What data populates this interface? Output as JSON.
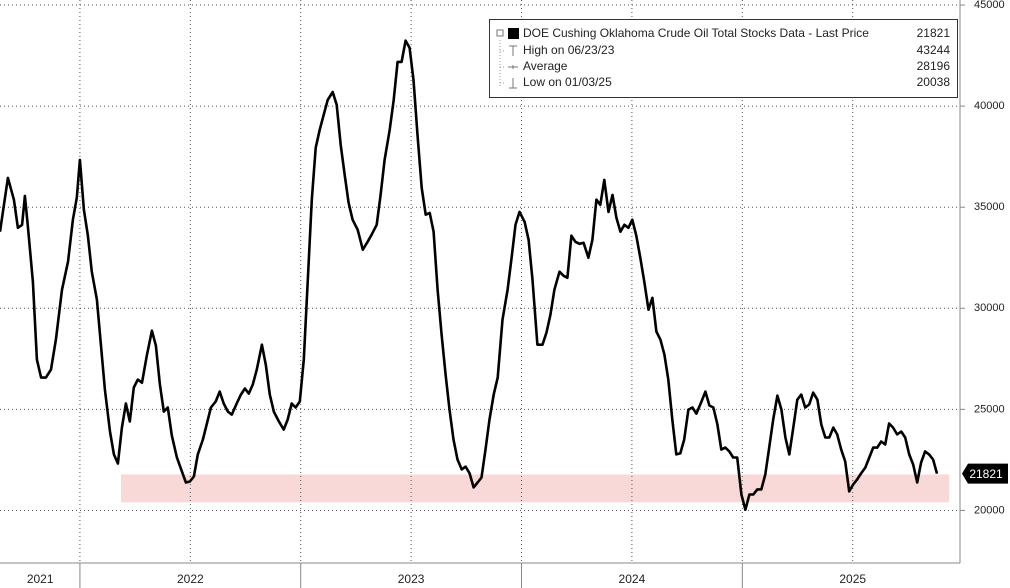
{
  "chart_data": {
    "type": "line",
    "series": [
      {
        "name": "DOE Cushing Oklahoma Crude Oil Total Stocks Data - Last Price",
        "color": "#000000",
        "x": [
          2021.638,
          2021.674,
          2021.701,
          2021.719,
          2021.738,
          2021.751,
          2021.765,
          2021.787,
          2021.805,
          2021.824,
          2021.846,
          2021.869,
          2021.891,
          2021.919,
          2021.946,
          2021.968,
          2021.986,
          2022.0,
          2022.018,
          2022.036,
          2022.054,
          2022.077,
          2022.095,
          2022.113,
          2022.136,
          2022.154,
          2022.172,
          2022.19,
          2022.208,
          2022.226,
          2022.244,
          2022.262,
          2022.281,
          2022.303,
          2022.326,
          2022.344,
          2022.362,
          2022.38,
          2022.398,
          2022.416,
          2022.439,
          2022.462,
          2022.48,
          2022.498,
          2022.516,
          2022.534,
          2022.557,
          2022.575,
          2022.593,
          2022.615,
          2022.633,
          2022.651,
          2022.67,
          2022.688,
          2022.71,
          2022.729,
          2022.747,
          2022.765,
          2022.783,
          2022.801,
          2022.824,
          2022.842,
          2022.86,
          2022.878,
          2022.901,
          2022.923,
          2022.941,
          2022.959,
          2022.977,
          2022.996,
          2023.014,
          2023.032,
          2023.05,
          2023.068,
          2023.086,
          2023.104,
          2023.122,
          2023.145,
          2023.163,
          2023.181,
          2023.199,
          2023.217,
          2023.235,
          2023.258,
          2023.281,
          2023.303,
          2023.321,
          2023.344,
          2023.362,
          2023.38,
          2023.403,
          2023.421,
          2023.439,
          2023.457,
          2023.475,
          2023.493,
          2023.511,
          2023.529,
          2023.548,
          2023.566,
          2023.584,
          2023.602,
          2023.62,
          2023.638,
          2023.656,
          2023.674,
          2023.692,
          2023.71,
          2023.729,
          2023.747,
          2023.765,
          2023.783,
          2023.801,
          2023.819,
          2023.837,
          2023.855,
          2023.874,
          2023.892,
          2023.914,
          2023.937,
          2023.955,
          2023.973,
          2023.991,
          2024.014,
          2024.032,
          2024.05,
          2024.072,
          2024.095,
          2024.113,
          2024.131,
          2024.149,
          2024.172,
          2024.19,
          2024.208,
          2024.226,
          2024.244,
          2024.262,
          2024.281,
          2024.303,
          2024.321,
          2024.339,
          2024.357,
          2024.375,
          2024.394,
          2024.412,
          2024.43,
          2024.448,
          2024.466,
          2024.484,
          2024.502,
          2024.52,
          2024.538,
          2024.556,
          2024.575,
          2024.593,
          2024.611,
          2024.629,
          2024.647,
          2024.665,
          2024.683,
          2024.701,
          2024.719,
          2024.737,
          2024.756,
          2024.774,
          2024.792,
          2024.815,
          2024.833,
          2024.851,
          2024.869,
          2024.887,
          2024.905,
          2024.923,
          2024.941,
          2024.959,
          2024.977,
          2024.996,
          2025.014,
          2025.032,
          2025.05,
          2025.068,
          2025.086,
          2025.104,
          2025.122,
          2025.14,
          2025.159,
          2025.177,
          2025.195,
          2025.213,
          2025.231,
          2025.249,
          2025.267,
          2025.285,
          2025.303,
          2025.321,
          2025.34,
          2025.358,
          2025.376,
          2025.394,
          2025.412,
          2025.43,
          2025.448,
          2025.466,
          2025.484,
          2025.502,
          2025.52,
          2025.538,
          2025.557,
          2025.575,
          2025.593,
          2025.611,
          2025.629,
          2025.647,
          2025.665,
          2025.683,
          2025.701,
          2025.72,
          2025.738,
          2025.756,
          2025.774,
          2025.792,
          2025.81,
          2025.828,
          2025.846,
          2025.864,
          2025.882
        ],
        "values": [
          33790,
          36450,
          35370,
          33980,
          34130,
          35560,
          33980,
          31310,
          27460,
          26570,
          26570,
          26970,
          28450,
          30920,
          32300,
          34380,
          35470,
          37340,
          34870,
          33590,
          31810,
          30430,
          28200,
          25980,
          23900,
          22770,
          22320,
          24100,
          25290,
          24400,
          26080,
          26470,
          26320,
          27660,
          28890,
          28150,
          26230,
          24890,
          25090,
          23710,
          22620,
          21930,
          21380,
          21430,
          21680,
          22770,
          23510,
          24300,
          25090,
          25390,
          25880,
          25290,
          24890,
          24740,
          25290,
          25730,
          26030,
          25780,
          26230,
          26970,
          28200,
          27210,
          25730,
          24890,
          24400,
          24000,
          24500,
          25290,
          25090,
          25390,
          27460,
          31410,
          35370,
          37940,
          38830,
          39570,
          40310,
          40700,
          40060,
          38080,
          36600,
          35220,
          34380,
          33880,
          32900,
          33290,
          33640,
          34130,
          35610,
          37340,
          38830,
          40310,
          42190,
          42190,
          43244,
          42880,
          41300,
          38580,
          35960,
          34630,
          34720,
          33790,
          30920,
          28700,
          26720,
          24990,
          23510,
          22520,
          22030,
          22170,
          21830,
          21140,
          21380,
          21630,
          23010,
          24500,
          25730,
          26570,
          29440,
          30920,
          32500,
          34130,
          34770,
          34280,
          33390,
          31410,
          28200,
          28200,
          28800,
          29680,
          30920,
          31810,
          31610,
          31510,
          33590,
          33290,
          33190,
          33240,
          32500,
          33390,
          35370,
          35120,
          36350,
          34770,
          35610,
          34480,
          33790,
          34130,
          33980,
          34380,
          33590,
          32500,
          31310,
          29930,
          30520,
          28840,
          28450,
          27710,
          26470,
          24500,
          22770,
          22820,
          23510,
          24990,
          25090,
          24790,
          25390,
          25880,
          25190,
          25090,
          24250,
          23010,
          23110,
          22920,
          22620,
          22620,
          20790,
          20038,
          20790,
          20790,
          21040,
          21040,
          21780,
          23110,
          24500,
          25680,
          24990,
          23610,
          22770,
          24100,
          25480,
          25730,
          25090,
          25240,
          25830,
          25480,
          24250,
          23610,
          23610,
          24100,
          23760,
          23010,
          22420,
          20940,
          21280,
          21530,
          21830,
          22120,
          22620,
          23110,
          23110,
          23410,
          23260,
          24300,
          24100,
          23760,
          23900,
          23610,
          22770,
          22270,
          21380,
          22370,
          22920,
          22770,
          22520,
          21821
        ]
      }
    ],
    "last_price": 21821,
    "stats": [
      {
        "label": "High on 06/23/23",
        "value": 43244
      },
      {
        "label": "Average",
        "value": 28196
      },
      {
        "label": "Low on 01/03/25",
        "value": 20038
      }
    ],
    "highlight_band": {
      "ylim": [
        20400,
        21780
      ],
      "xlim": [
        2022.186,
        2025.937
      ],
      "color": "#f9d9d8"
    },
    "xlim": [
      2021.638,
      2025.986
    ],
    "ylim": [
      17400,
      45250
    ],
    "yticks": [
      20000,
      25000,
      30000,
      35000,
      40000,
      45000
    ],
    "xticks": [
      {
        "value": 2021.82,
        "label": "2021"
      },
      {
        "value": 2022.5,
        "label": "2022"
      },
      {
        "value": 2023.5,
        "label": "2023"
      },
      {
        "value": 2024.5,
        "label": "2024"
      },
      {
        "value": 2025.5,
        "label": "2025"
      }
    ],
    "year_separators": [
      2022,
      2023,
      2024,
      2025
    ],
    "xgrid": [
      2022,
      2022.5,
      2023,
      2023.5,
      2024,
      2024.5,
      2025,
      2025.5
    ],
    "grid": true
  }
}
